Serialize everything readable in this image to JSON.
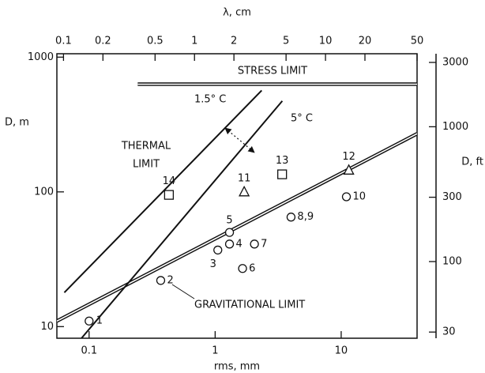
{
  "chart_data": {
    "type": "line",
    "xlabel": "rms, mm",
    "ylabel": "D, m",
    "x2label": "λ, cm",
    "y2label": "D, ft",
    "log_x": true,
    "log_y": true,
    "xlim": [
      0.0555,
      40
    ],
    "ylim": [
      8.2,
      1060
    ],
    "x2lim": [
      0.089,
      50
    ],
    "y2lim": [
      27,
      3480
    ],
    "xticks": [
      0.1,
      1,
      10
    ],
    "yticks": [
      10,
      100,
      1000
    ],
    "x2ticks": [
      0.1,
      0.2,
      0.5,
      1,
      2,
      5,
      10,
      20,
      50
    ],
    "y2ticks": [
      30,
      100,
      300,
      1000,
      3000
    ],
    "color": "#111111",
    "series": [
      {
        "name": "GRAVITATIONAL LIMIT",
        "style": "double",
        "x": [
          0.0555,
          40
        ],
        "values": [
          11,
          270
        ]
      },
      {
        "name": "1.5° C",
        "style": "single",
        "x": [
          0.0636,
          2.34
        ],
        "values": [
          17.9,
          566
        ]
      },
      {
        "name": "5° C",
        "style": "single",
        "x": [
          0.087,
          3.41
        ],
        "values": [
          8.2,
          473
        ]
      },
      {
        "name": "STRESS LIMIT",
        "style": "double",
        "x": [
          0.243,
          40
        ],
        "values": [
          630,
          630
        ]
      }
    ],
    "annotations": [
      "THERMAL",
      "LIMIT"
    ],
    "points": [
      {
        "label": "1",
        "marker": "circle",
        "x": 0.1,
        "y": 11
      },
      {
        "label": "2",
        "marker": "circle",
        "x": 0.37,
        "y": 22
      },
      {
        "label": "3",
        "marker": "circle",
        "x": 1.05,
        "y": 37
      },
      {
        "label": "4",
        "marker": "circle",
        "x": 1.3,
        "y": 41
      },
      {
        "label": "5",
        "marker": "circle",
        "x": 1.3,
        "y": 50
      },
      {
        "label": "6",
        "marker": "circle",
        "x": 1.65,
        "y": 27
      },
      {
        "label": "7",
        "marker": "circle",
        "x": 2.05,
        "y": 41
      },
      {
        "label": "8,9",
        "marker": "circle",
        "x": 4.0,
        "y": 65
      },
      {
        "label": "10",
        "marker": "circle",
        "x": 11,
        "y": 92
      },
      {
        "label": "11",
        "marker": "triangle",
        "x": 1.7,
        "y": 100
      },
      {
        "label": "12",
        "marker": "triangle",
        "x": 11.5,
        "y": 145
      },
      {
        "label": "13",
        "marker": "square",
        "x": 3.4,
        "y": 135
      },
      {
        "label": "14",
        "marker": "square",
        "x": 0.43,
        "y": 95
      }
    ]
  }
}
